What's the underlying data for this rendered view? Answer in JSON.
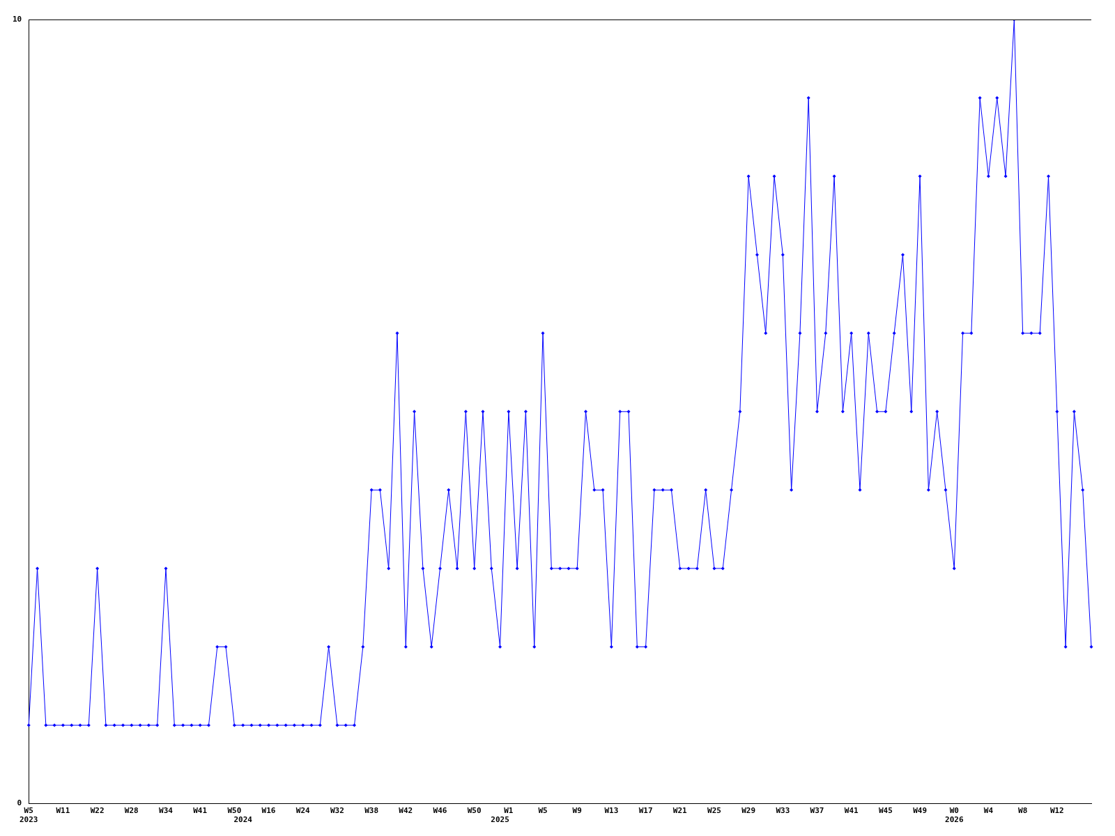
{
  "chart_data": {
    "type": "line",
    "categories": [
      "W5\n2023",
      null,
      null,
      null,
      "W11",
      null,
      null,
      null,
      "W22",
      null,
      null,
      null,
      "W28",
      null,
      null,
      null,
      "W34",
      null,
      null,
      null,
      "W41",
      null,
      null,
      null,
      "W50",
      "\n2024",
      null,
      null,
      "W16",
      null,
      null,
      null,
      "W24",
      null,
      null,
      null,
      "W32",
      null,
      null,
      null,
      "W38",
      null,
      null,
      null,
      "W42",
      null,
      null,
      null,
      "W46",
      null,
      null,
      null,
      "W50",
      null,
      null,
      "\n2025",
      "W1",
      null,
      null,
      null,
      "W5",
      null,
      null,
      null,
      "W9",
      null,
      null,
      null,
      "W13",
      null,
      null,
      null,
      "W17",
      null,
      null,
      null,
      "W21",
      null,
      null,
      null,
      "W25",
      null,
      null,
      null,
      "W29",
      null,
      null,
      null,
      "W33",
      null,
      null,
      null,
      "W37",
      null,
      null,
      null,
      "W41",
      null,
      null,
      null,
      "W45",
      null,
      null,
      null,
      "W49",
      null,
      null,
      null,
      "W0\n2026",
      null,
      null,
      null,
      "W4",
      null,
      null,
      null,
      "W8",
      null,
      null,
      null,
      "W12",
      null,
      null,
      null,
      null
    ],
    "series": [
      {
        "color": "#0000ff",
        "values": [
          1,
          3,
          1,
          1,
          1,
          1,
          1,
          1,
          3,
          1,
          1,
          1,
          1,
          1,
          1,
          1,
          3,
          1,
          1,
          1,
          1,
          1,
          2,
          2,
          1,
          1,
          1,
          1,
          1,
          1,
          1,
          1,
          1,
          1,
          1,
          2,
          1,
          1,
          1,
          2,
          4,
          4,
          3,
          6,
          2,
          5,
          3,
          2,
          3,
          4,
          3,
          5,
          3,
          5,
          3,
          2,
          5,
          3,
          5,
          2,
          6,
          3,
          3,
          3,
          3,
          5,
          4,
          4,
          2,
          5,
          5,
          2,
          2,
          4,
          4,
          4,
          3,
          3,
          3,
          4,
          3,
          3,
          4,
          5,
          8,
          7,
          6,
          8,
          7,
          4,
          6,
          9,
          5,
          6,
          8,
          5,
          6,
          4,
          6,
          5,
          5,
          6,
          7,
          5,
          8,
          4,
          5,
          4,
          3,
          6,
          6,
          9,
          8,
          9,
          8,
          10,
          6,
          6,
          6,
          8,
          5,
          2,
          5,
          4,
          2
        ]
      }
    ],
    "ylim": [
      0,
      10
    ],
    "yticks": [
      0,
      10
    ],
    "grid": false,
    "legend": false,
    "marker": "diamond",
    "line_style": "solid"
  }
}
